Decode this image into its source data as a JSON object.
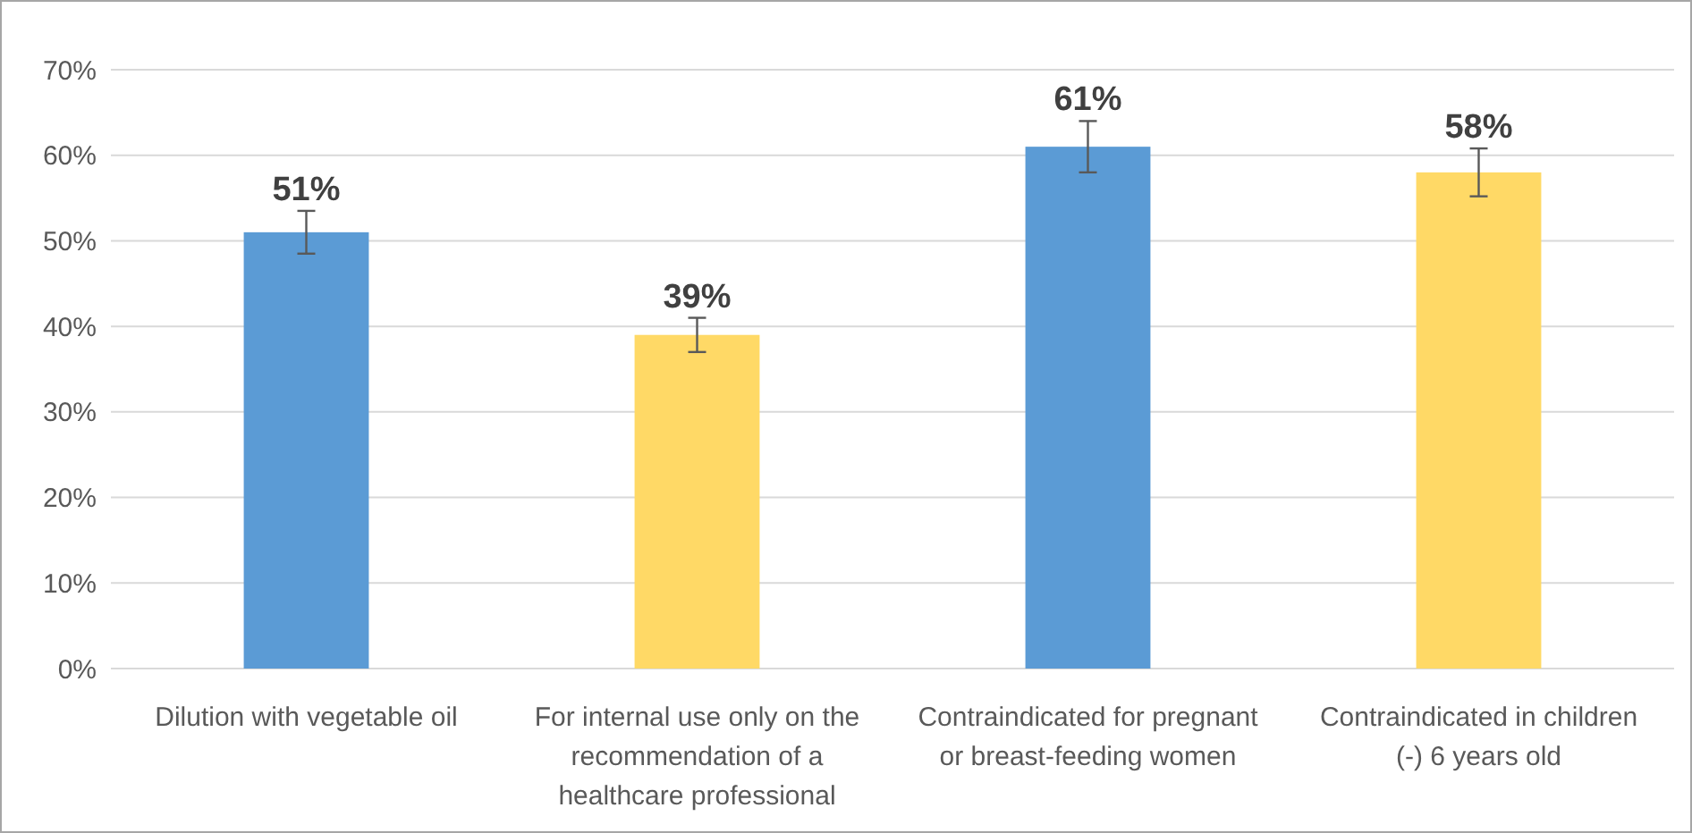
{
  "chart_data": {
    "type": "bar",
    "categories": [
      "Dilution with vegetable oil",
      "For internal use only on the recommendation of a healthcare professional",
      "Contraindicated for pregnant or breast-feeding women",
      "Contraindicated in children (-) 6 years old"
    ],
    "values": [
      51,
      39,
      61,
      58
    ],
    "colors": [
      "#5b9bd5",
      "#ffd966",
      "#5b9bd5",
      "#ffd966"
    ],
    "errors": [
      2.5,
      2,
      3,
      2.8
    ],
    "value_labels": [
      "51%",
      "39%",
      "61%",
      "58%"
    ],
    "ylim": [
      0,
      70
    ],
    "yticks": [
      {
        "value": 0,
        "label": "0%"
      },
      {
        "value": 10,
        "label": "10%"
      },
      {
        "value": 20,
        "label": "20%"
      },
      {
        "value": 30,
        "label": "30%"
      },
      {
        "value": 40,
        "label": "40%"
      },
      {
        "value": 50,
        "label": "50%"
      },
      {
        "value": 60,
        "label": "60%"
      },
      {
        "value": 70,
        "label": "70%"
      }
    ],
    "grid": "y"
  }
}
